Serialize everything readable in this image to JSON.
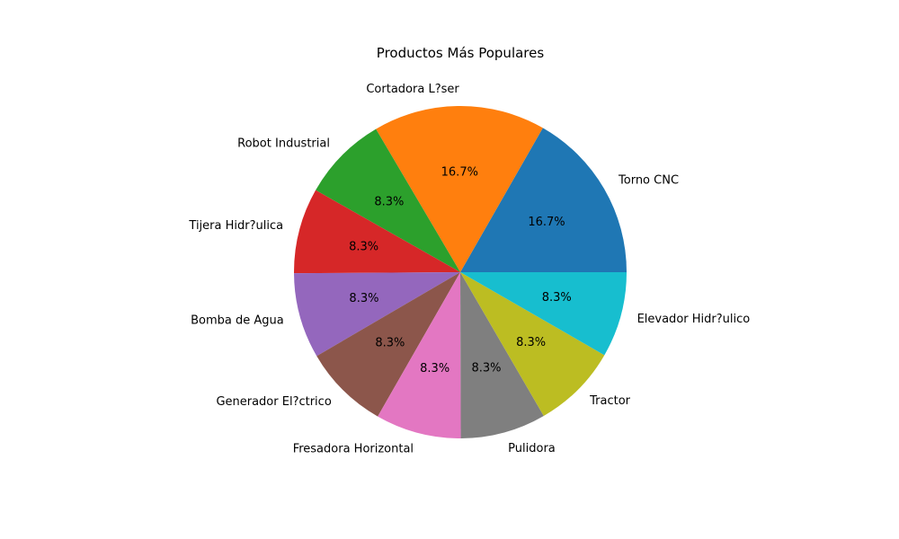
{
  "chart_data": {
    "type": "pie",
    "title": "Productos Más Populares",
    "slices": [
      {
        "label": "Torno CNC",
        "value": 16.7,
        "pct_label": "16.7%",
        "color": "#1f77b4"
      },
      {
        "label": "Cortadora L?ser",
        "value": 16.7,
        "pct_label": "16.7%",
        "color": "#ff7f0e"
      },
      {
        "label": "Robot Industrial",
        "value": 8.3,
        "pct_label": "8.3%",
        "color": "#2ca02c"
      },
      {
        "label": "Tijera Hidr?ulica",
        "value": 8.3,
        "pct_label": "8.3%",
        "color": "#d62728"
      },
      {
        "label": "Bomba de Agua",
        "value": 8.3,
        "pct_label": "8.3%",
        "color": "#9467bd"
      },
      {
        "label": "Generador El?ctrico",
        "value": 8.3,
        "pct_label": "8.3%",
        "color": "#8c564b"
      },
      {
        "label": "Fresadora Horizontal",
        "value": 8.3,
        "pct_label": "8.3%",
        "color": "#e377c2"
      },
      {
        "label": "Pulidora",
        "value": 8.3,
        "pct_label": "8.3%",
        "color": "#7f7f7f"
      },
      {
        "label": "Tractor",
        "value": 8.3,
        "pct_label": "8.3%",
        "color": "#bcbd22"
      },
      {
        "label": "Elevador Hidr?ulico",
        "value": 8.3,
        "pct_label": "8.3%",
        "color": "#17becf"
      }
    ]
  }
}
